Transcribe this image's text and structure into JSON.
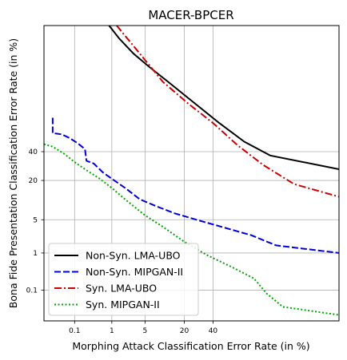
{
  "chart_data": {
    "type": "line",
    "title": "MACER-BPCER",
    "xlabel": "Morphing Attack Classification Error Rate (in %)",
    "ylabel": "Bona Fide Presentation Classification Error Rate (in %)",
    "scale": "probit",
    "xlim": [
      0.01,
      99
    ],
    "ylim": [
      0.01,
      99
    ],
    "grid": true,
    "legend_position": "lower-left",
    "x_ticks": [
      0.1,
      1,
      5,
      20,
      40
    ],
    "y_ticks": [
      0.1,
      1,
      5,
      20,
      40
    ],
    "x_tick_labels": [
      "0.1",
      "1",
      "5",
      "20",
      "40"
    ],
    "y_tick_labels": [
      "0.1",
      "1",
      "5",
      "20",
      "40"
    ],
    "series": [
      {
        "name": "Non-Syn. LMA-UBO",
        "color": "#000000",
        "style": "solid",
        "points": [
          [
            0.86,
            99
          ],
          [
            1.5,
            98
          ],
          [
            3,
            96
          ],
          [
            6,
            93
          ],
          [
            12,
            88
          ],
          [
            25,
            78
          ],
          [
            45,
            63
          ],
          [
            65,
            48
          ],
          [
            82,
            37
          ],
          [
            99,
            27
          ]
        ]
      },
      {
        "name": "Non-Syn. MIPGAN-II",
        "color": "#0000dd",
        "style": "dashed",
        "points": [
          [
            0.02,
            67
          ],
          [
            0.02,
            55
          ],
          [
            0.04,
            54
          ],
          [
            0.07,
            51
          ],
          [
            0.12,
            47
          ],
          [
            0.2,
            42
          ],
          [
            0.22,
            33
          ],
          [
            0.35,
            31
          ],
          [
            0.6,
            25
          ],
          [
            1,
            21
          ],
          [
            2,
            16
          ],
          [
            4,
            11
          ],
          [
            8,
            8.5
          ],
          [
            15,
            6.5
          ],
          [
            30,
            4.8
          ],
          [
            50,
            3.5
          ],
          [
            70,
            2.5
          ],
          [
            85,
            1.5
          ],
          [
            99,
            1.0
          ]
        ]
      },
      {
        "name": "Syn. LMA-UBO",
        "color": "#cc0000",
        "style": "dashdot",
        "points": [
          [
            1.3,
            99
          ],
          [
            4,
            96
          ],
          [
            10,
            88
          ],
          [
            22,
            77
          ],
          [
            40,
            63
          ],
          [
            60,
            45
          ],
          [
            78,
            30
          ],
          [
            92,
            18
          ],
          [
            99,
            12
          ]
        ]
      },
      {
        "name": "Syn. MIPGAN-II",
        "color": "#00aa00",
        "style": "dotted",
        "points": [
          [
            0.01,
            46
          ],
          [
            0.02,
            44
          ],
          [
            0.05,
            38
          ],
          [
            0.1,
            32
          ],
          [
            0.2,
            27
          ],
          [
            0.5,
            21
          ],
          [
            1,
            16
          ],
          [
            2,
            11
          ],
          [
            5,
            6
          ],
          [
            10,
            3.7
          ],
          [
            20,
            1.8
          ],
          [
            35,
            0.9
          ],
          [
            55,
            0.45
          ],
          [
            72,
            0.22
          ],
          [
            80,
            0.08
          ],
          [
            88,
            0.03
          ],
          [
            99,
            0.016
          ]
        ]
      }
    ]
  }
}
